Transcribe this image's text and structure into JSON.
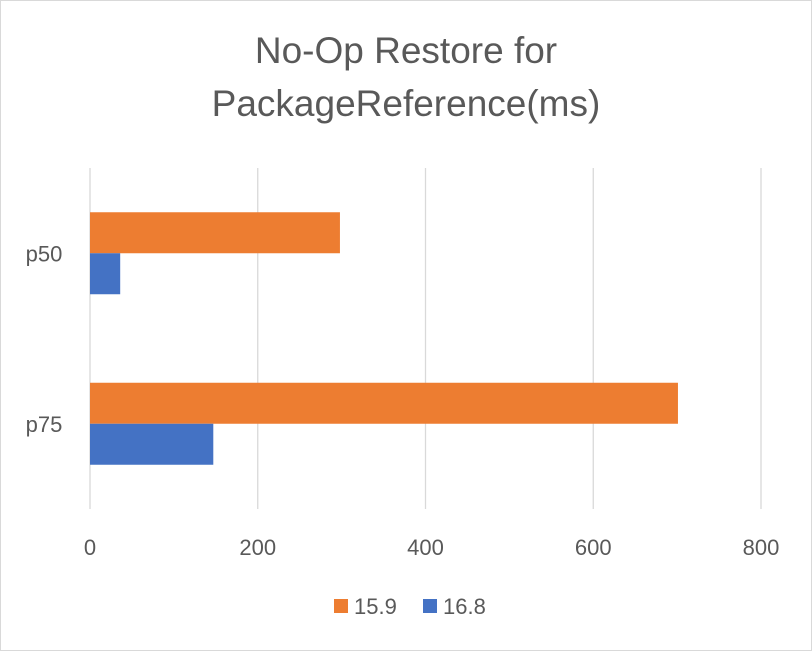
{
  "chart_data": {
    "type": "bar",
    "orientation": "horizontal",
    "title": "No-Op Restore for PackageReference(ms)",
    "title_lines": [
      "No-Op Restore for",
      "PackageReference(ms)"
    ],
    "categories": [
      "p50",
      "p75"
    ],
    "series": [
      {
        "name": "15.9",
        "values": [
          298,
          701
        ],
        "color": "#ed7d31"
      },
      {
        "name": "16.8",
        "values": [
          36,
          147
        ],
        "color": "#4472c4"
      }
    ],
    "xlim": [
      0,
      800
    ],
    "x_ticks": [
      "0",
      "200",
      "400",
      "600",
      "800"
    ],
    "grid": true,
    "legend_position": "bottom"
  }
}
